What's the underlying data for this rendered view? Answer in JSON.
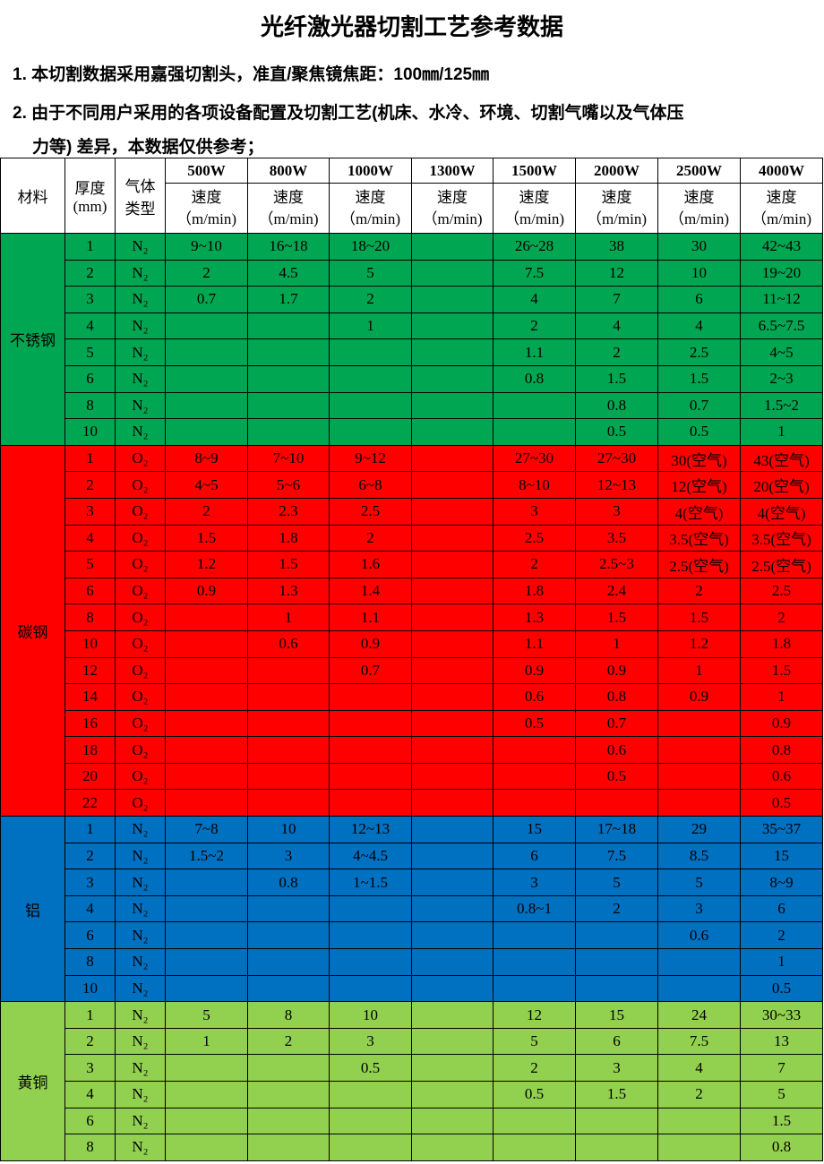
{
  "title": "光纤激光器切割工艺参考数据",
  "notes": {
    "note1": "1. 本切割数据采用嘉强切割头，准直/聚焦镜焦距：100㎜/125㎜",
    "note2_line1": "2. 由于不同用户采用的各项设备配置及切割工艺(机床、水冷、环境、切割气嘴以及气体压",
    "note2_line2": "力等) 差异，本数据仅供参考；"
  },
  "table": {
    "headers": {
      "material": "材料",
      "thickness": "厚度",
      "thickness_unit": "(mm)",
      "gas": "气体",
      "gas2": "类型",
      "speed": "速度",
      "speed_unit": "（m/min)",
      "powers": [
        "500W",
        "800W",
        "1000W",
        "1300W",
        "1500W",
        "2000W",
        "2500W",
        "4000W"
      ]
    },
    "groups": [
      {
        "material": "不锈钢",
        "color": "#00a651",
        "gas": "N₂",
        "rows": [
          {
            "t": "1",
            "v": [
              "9~10",
              "16~18",
              "18~20",
              "",
              "26~28",
              "38",
              "30",
              "42~43"
            ]
          },
          {
            "t": "2",
            "v": [
              "2",
              "4.5",
              "5",
              "",
              "7.5",
              "12",
              "10",
              "19~20"
            ]
          },
          {
            "t": "3",
            "v": [
              "0.7",
              "1.7",
              "2",
              "",
              "4",
              "7",
              "6",
              "11~12"
            ]
          },
          {
            "t": "4",
            "v": [
              "",
              "",
              "1",
              "",
              "2",
              "4",
              "4",
              "6.5~7.5"
            ]
          },
          {
            "t": "5",
            "v": [
              "",
              "",
              "",
              "",
              "1.1",
              "2",
              "2.5",
              "4~5"
            ]
          },
          {
            "t": "6",
            "v": [
              "",
              "",
              "",
              "",
              "0.8",
              "1.5",
              "1.5",
              "2~3"
            ]
          },
          {
            "t": "8",
            "v": [
              "",
              "",
              "",
              "",
              "",
              "0.8",
              "0.7",
              "1.5~2"
            ]
          },
          {
            "t": "10",
            "v": [
              "",
              "",
              "",
              "",
              "",
              "0.5",
              "0.5",
              "1"
            ]
          }
        ]
      },
      {
        "material": "碳钢",
        "color": "#ff0000",
        "gas": "O₂",
        "rows": [
          {
            "t": "1",
            "v": [
              "8~9",
              "7~10",
              "9~12",
              "",
              "27~30",
              "27~30",
              "30(空气)",
              "43(空气)"
            ]
          },
          {
            "t": "2",
            "v": [
              "4~5",
              "5~6",
              "6~8",
              "",
              "8~10",
              "12~13",
              "12(空气)",
              "20(空气)"
            ]
          },
          {
            "t": "3",
            "v": [
              "2",
              "2.3",
              "2.5",
              "",
              "3",
              "3",
              "4(空气)",
              "4(空气)"
            ]
          },
          {
            "t": "4",
            "v": [
              "1.5",
              "1.8",
              "2",
              "",
              "2.5",
              "3.5",
              "3.5(空气)",
              "3.5(空气)"
            ]
          },
          {
            "t": "5",
            "v": [
              "1.2",
              "1.5",
              "1.6",
              "",
              "2",
              "2.5~3",
              "2.5(空气)",
              "2.5(空气)"
            ]
          },
          {
            "t": "6",
            "v": [
              "0.9",
              "1.3",
              "1.4",
              "",
              "1.8",
              "2.4",
              "2",
              "2.5"
            ]
          },
          {
            "t": "8",
            "v": [
              "",
              "1",
              "1.1",
              "",
              "1.3",
              "1.5",
              "1.5",
              "2"
            ]
          },
          {
            "t": "10",
            "v": [
              "",
              "0.6",
              "0.9",
              "",
              "1.1",
              "1",
              "1.2",
              "1.8"
            ]
          },
          {
            "t": "12",
            "v": [
              "",
              "",
              "0.7",
              "",
              "0.9",
              "0.9",
              "1",
              "1.5"
            ]
          },
          {
            "t": "14",
            "v": [
              "",
              "",
              "",
              "",
              "0.6",
              "0.8",
              "0.9",
              "1"
            ]
          },
          {
            "t": "16",
            "v": [
              "",
              "",
              "",
              "",
              "0.5",
              "0.7",
              "",
              "0.9"
            ]
          },
          {
            "t": "18",
            "v": [
              "",
              "",
              "",
              "",
              "",
              "0.6",
              "",
              "0.8"
            ]
          },
          {
            "t": "20",
            "v": [
              "",
              "",
              "",
              "",
              "",
              "0.5",
              "",
              "0.6"
            ]
          },
          {
            "t": "22",
            "v": [
              "",
              "",
              "",
              "",
              "",
              "",
              "",
              "0.5"
            ]
          }
        ]
      },
      {
        "material": "铝",
        "color": "#0070c0",
        "gas": "N₂",
        "rows": [
          {
            "t": "1",
            "v": [
              "7~8",
              "10",
              "12~13",
              "",
              "15",
              "17~18",
              "29",
              "35~37"
            ]
          },
          {
            "t": "2",
            "v": [
              "1.5~2",
              "3",
              "4~4.5",
              "",
              "6",
              "7.5",
              "8.5",
              "15"
            ]
          },
          {
            "t": "3",
            "v": [
              "",
              "0.8",
              "1~1.5",
              "",
              "3",
              "5",
              "5",
              "8~9"
            ]
          },
          {
            "t": "4",
            "v": [
              "",
              "",
              "",
              "",
              "0.8~1",
              "2",
              "3",
              "6"
            ]
          },
          {
            "t": "6",
            "v": [
              "",
              "",
              "",
              "",
              "",
              "",
              "0.6",
              "2"
            ]
          },
          {
            "t": "8",
            "v": [
              "",
              "",
              "",
              "",
              "",
              "",
              "",
              "1"
            ]
          },
          {
            "t": "10",
            "v": [
              "",
              "",
              "",
              "",
              "",
              "",
              "",
              "0.5"
            ]
          }
        ]
      },
      {
        "material": "黄铜",
        "color": "#92d050",
        "gas": "N₂",
        "rows": [
          {
            "t": "1",
            "v": [
              "5",
              "8",
              "10",
              "",
              "12",
              "15",
              "24",
              "30~33"
            ]
          },
          {
            "t": "2",
            "v": [
              "1",
              "2",
              "3",
              "",
              "5",
              "6",
              "7.5",
              "13"
            ]
          },
          {
            "t": "3",
            "v": [
              "",
              "",
              "0.5",
              "",
              "2",
              "3",
              "4",
              "7"
            ]
          },
          {
            "t": "4",
            "v": [
              "",
              "",
              "",
              "",
              "0.5",
              "1.5",
              "2",
              "5"
            ]
          },
          {
            "t": "6",
            "v": [
              "",
              "",
              "",
              "",
              "",
              "",
              "",
              "1.5"
            ]
          },
          {
            "t": "8",
            "v": [
              "",
              "",
              "",
              "",
              "",
              "",
              "",
              "0.8"
            ]
          }
        ]
      }
    ]
  }
}
